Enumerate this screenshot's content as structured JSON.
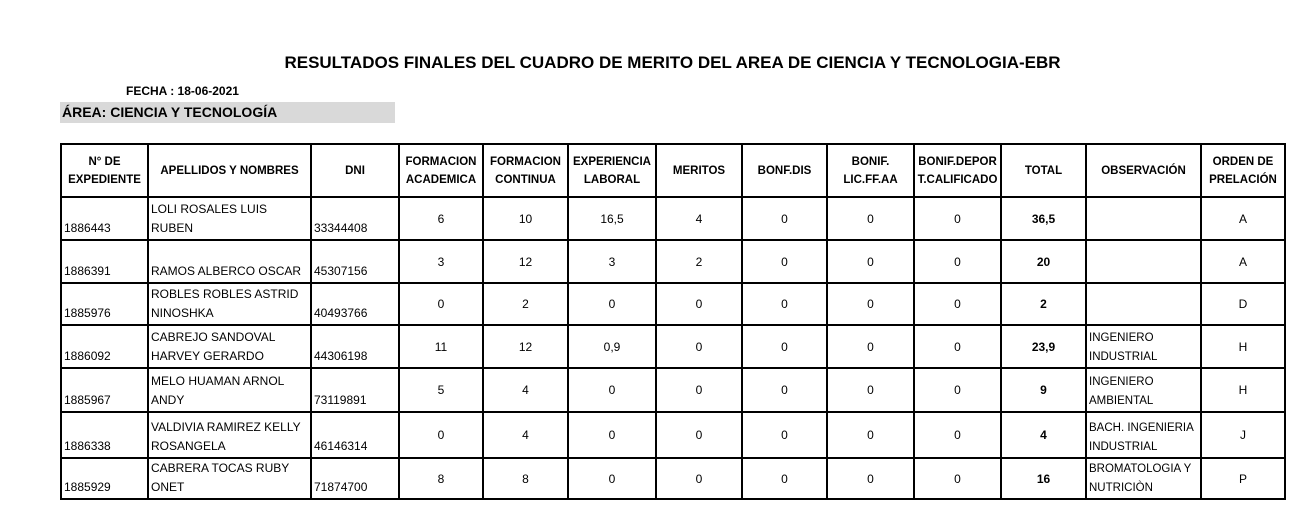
{
  "title": "RESULTADOS FINALES DEL CUADRO DE MERITO DEL AREA DE CIENCIA Y TECNOLOGIA-EBR",
  "fecha": "FECHA : 18-06-2021",
  "area": "ÁREA:  CIENCIA Y TECNOLOGÍA",
  "headers": [
    "N° DE EXPEDIENTE",
    "APELLIDOS Y NOMBRES",
    "DNI",
    "FORMACION ACADEMICA",
    "FORMACION CONTINUA",
    "EXPERIENCIA LABORAL",
    "MERITOS",
    "BONF.DIS",
    "BONIF. LIC.FF.AA",
    "BONIF.DEPOR T.CALIFICADO",
    "TOTAL",
    "OBSERVACIÓN",
    "ORDEN DE PRELACIÓN"
  ],
  "rows": [
    [
      "1886443",
      "LOLI ROSALES LUIS RUBEN",
      "33344408",
      "6",
      "10",
      "16,5",
      "4",
      "0",
      "0",
      "0",
      "36,5",
      "",
      "A"
    ],
    [
      "1886391",
      "RAMOS ALBERCO OSCAR",
      "45307156",
      "3",
      "12",
      "3",
      "2",
      "0",
      "0",
      "0",
      "20",
      "",
      "A"
    ],
    [
      "1885976",
      "ROBLES ROBLES ASTRID NINOSHKA",
      "40493766",
      "0",
      "2",
      "0",
      "0",
      "0",
      "0",
      "0",
      "2",
      "",
      "D"
    ],
    [
      "1886092",
      "CABREJO SANDOVAL HARVEY GERARDO",
      "44306198",
      "11",
      "12",
      "0,9",
      "0",
      "0",
      "0",
      "0",
      "23,9",
      "INGENIERO INDUSTRIAL",
      "H"
    ],
    [
      "1885967",
      "MELO HUAMAN ARNOL ANDY",
      "73119891",
      "5",
      "4",
      "0",
      "0",
      "0",
      "0",
      "0",
      "9",
      "INGENIERO AMBIENTAL",
      "H"
    ],
    [
      "1886338",
      "VALDIVIA RAMIREZ KELLY ROSANGELA",
      "46146314",
      "0",
      "4",
      "0",
      "0",
      "0",
      "0",
      "0",
      "4",
      "BACH. INGENIERIA INDUSTRIAL",
      "J"
    ],
    [
      "1885929",
      "CABRERA TOCAS RUBY ONET",
      "71874700",
      "8",
      "8",
      "0",
      "0",
      "0",
      "0",
      "0",
      "16",
      "BROMATOLOGIA Y NUTRICIÒN",
      "P"
    ]
  ]
}
